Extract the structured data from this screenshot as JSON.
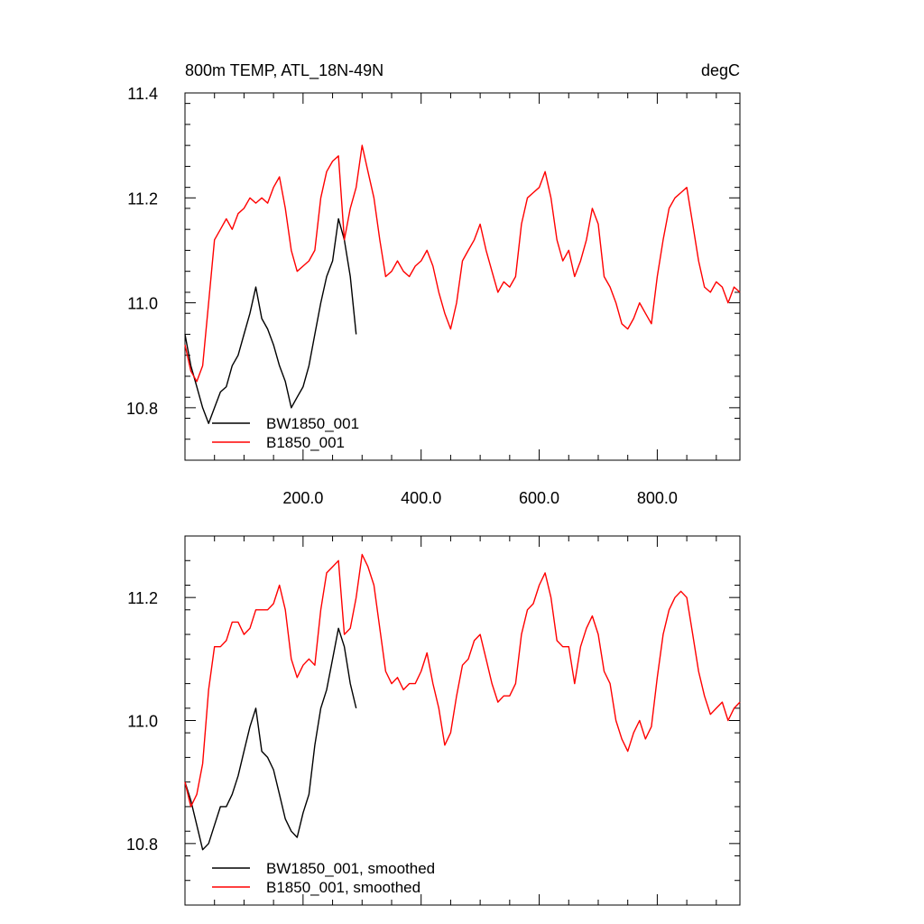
{
  "chart_data": [
    {
      "type": "line",
      "title": "800m TEMP, ATL_18N-49N",
      "units": "degC",
      "xlim": [
        0,
        940
      ],
      "ylim": [
        10.7,
        11.4
      ],
      "xticks": [
        200,
        400,
        600,
        800
      ],
      "xtick_labels": [
        "200.0",
        "400.0",
        "600.0",
        "800.0"
      ],
      "yticks": [
        10.8,
        11.0,
        11.2,
        11.4
      ],
      "ytick_labels": [
        "10.8",
        "11.0",
        "11.2",
        "11.4"
      ],
      "legend_position": "bottom-left",
      "series": [
        {
          "name": "BW1850_001",
          "color": "#000000",
          "x": [
            0,
            10,
            20,
            30,
            40,
            50,
            60,
            70,
            80,
            90,
            100,
            110,
            120,
            130,
            140,
            150,
            160,
            170,
            180,
            190,
            200,
            210,
            220,
            230,
            240,
            250,
            260,
            270,
            280,
            290
          ],
          "y": [
            10.94,
            10.88,
            10.84,
            10.8,
            10.77,
            10.8,
            10.83,
            10.84,
            10.88,
            10.9,
            10.94,
            10.98,
            11.03,
            10.97,
            10.95,
            10.92,
            10.88,
            10.85,
            10.8,
            10.82,
            10.84,
            10.88,
            10.94,
            11.0,
            11.05,
            11.08,
            11.16,
            11.12,
            11.05,
            10.94
          ]
        },
        {
          "name": "B1850_001",
          "color": "#ff0000",
          "x": [
            0,
            10,
            20,
            30,
            40,
            50,
            60,
            70,
            80,
            90,
            100,
            110,
            120,
            130,
            140,
            150,
            160,
            170,
            180,
            190,
            200,
            210,
            220,
            230,
            240,
            250,
            260,
            270,
            280,
            290,
            300,
            310,
            320,
            330,
            340,
            350,
            360,
            370,
            380,
            390,
            400,
            410,
            420,
            430,
            440,
            450,
            460,
            470,
            480,
            490,
            500,
            510,
            520,
            530,
            540,
            550,
            560,
            570,
            580,
            590,
            600,
            610,
            620,
            630,
            640,
            650,
            660,
            670,
            680,
            690,
            700,
            710,
            720,
            730,
            740,
            750,
            760,
            770,
            780,
            790,
            800,
            810,
            820,
            830,
            840,
            850,
            860,
            870,
            880,
            890,
            900,
            910,
            920,
            930,
            940
          ],
          "y": [
            10.92,
            10.87,
            10.85,
            10.88,
            11.0,
            11.12,
            11.14,
            11.16,
            11.14,
            11.17,
            11.18,
            11.2,
            11.19,
            11.2,
            11.19,
            11.22,
            11.24,
            11.18,
            11.1,
            11.06,
            11.07,
            11.08,
            11.1,
            11.2,
            11.25,
            11.27,
            11.28,
            11.12,
            11.18,
            11.22,
            11.3,
            11.25,
            11.2,
            11.12,
            11.05,
            11.06,
            11.08,
            11.06,
            11.05,
            11.07,
            11.08,
            11.1,
            11.07,
            11.02,
            10.98,
            10.95,
            11.0,
            11.08,
            11.1,
            11.12,
            11.15,
            11.1,
            11.06,
            11.02,
            11.04,
            11.03,
            11.05,
            11.15,
            11.2,
            11.21,
            11.22,
            11.25,
            11.2,
            11.12,
            11.08,
            11.1,
            11.05,
            11.08,
            11.12,
            11.18,
            11.15,
            11.05,
            11.03,
            11.0,
            10.96,
            10.95,
            10.97,
            11.0,
            10.98,
            10.96,
            11.05,
            11.12,
            11.18,
            11.2,
            11.21,
            11.22,
            11.15,
            11.08,
            11.03,
            11.02,
            11.04,
            11.03,
            11.0,
            11.03,
            11.02
          ]
        }
      ]
    },
    {
      "type": "line",
      "xlim": [
        0,
        940
      ],
      "ylim": [
        10.7,
        11.3
      ],
      "xticks": [
        200,
        400,
        600,
        800
      ],
      "yticks": [
        10.8,
        11.0,
        11.2
      ],
      "ytick_labels": [
        "10.8",
        "11.0",
        "11.2"
      ],
      "legend_position": "bottom-left",
      "series": [
        {
          "name": "BW1850_001, smoothed",
          "color": "#000000",
          "x": [
            0,
            10,
            20,
            30,
            40,
            50,
            60,
            70,
            80,
            90,
            100,
            110,
            120,
            130,
            140,
            150,
            160,
            170,
            180,
            190,
            200,
            210,
            220,
            230,
            240,
            250,
            260,
            270,
            280,
            290
          ],
          "y": [
            10.9,
            10.87,
            10.83,
            10.79,
            10.8,
            10.83,
            10.86,
            10.86,
            10.88,
            10.91,
            10.95,
            10.99,
            11.02,
            10.95,
            10.94,
            10.92,
            10.88,
            10.84,
            10.82,
            10.81,
            10.85,
            10.88,
            10.96,
            11.02,
            11.05,
            11.1,
            11.15,
            11.12,
            11.06,
            11.02
          ]
        },
        {
          "name": "B1850_001, smoothed",
          "color": "#ff0000",
          "x": [
            0,
            10,
            20,
            30,
            40,
            50,
            60,
            70,
            80,
            90,
            100,
            110,
            120,
            130,
            140,
            150,
            160,
            170,
            180,
            190,
            200,
            210,
            220,
            230,
            240,
            250,
            260,
            270,
            280,
            290,
            300,
            310,
            320,
            330,
            340,
            350,
            360,
            370,
            380,
            390,
            400,
            410,
            420,
            430,
            440,
            450,
            460,
            470,
            480,
            490,
            500,
            510,
            520,
            530,
            540,
            550,
            560,
            570,
            580,
            590,
            600,
            610,
            620,
            630,
            640,
            650,
            660,
            670,
            680,
            690,
            700,
            710,
            720,
            730,
            740,
            750,
            760,
            770,
            780,
            790,
            800,
            810,
            820,
            830,
            840,
            850,
            860,
            870,
            880,
            890,
            900,
            910,
            920,
            930,
            940
          ],
          "y": [
            10.9,
            10.86,
            10.88,
            10.93,
            11.05,
            11.12,
            11.12,
            11.13,
            11.16,
            11.16,
            11.14,
            11.15,
            11.18,
            11.18,
            11.18,
            11.19,
            11.22,
            11.18,
            11.1,
            11.07,
            11.09,
            11.1,
            11.09,
            11.18,
            11.24,
            11.25,
            11.26,
            11.14,
            11.15,
            11.2,
            11.27,
            11.25,
            11.22,
            11.15,
            11.08,
            11.06,
            11.07,
            11.05,
            11.06,
            11.06,
            11.08,
            11.11,
            11.06,
            11.02,
            10.96,
            10.98,
            11.04,
            11.09,
            11.1,
            11.13,
            11.14,
            11.1,
            11.06,
            11.03,
            11.04,
            11.04,
            11.06,
            11.14,
            11.18,
            11.19,
            11.22,
            11.24,
            11.2,
            11.13,
            11.12,
            11.12,
            11.06,
            11.12,
            11.15,
            11.17,
            11.14,
            11.08,
            11.06,
            11.0,
            10.97,
            10.95,
            10.98,
            11.0,
            10.97,
            10.99,
            11.07,
            11.14,
            11.18,
            11.2,
            11.21,
            11.2,
            11.14,
            11.08,
            11.04,
            11.01,
            11.02,
            11.03,
            11.0,
            11.02,
            11.03
          ]
        }
      ]
    }
  ]
}
